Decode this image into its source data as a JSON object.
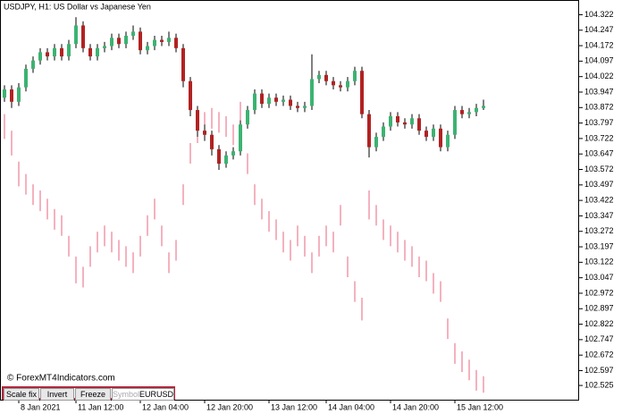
{
  "chart_data": {
    "type": "candlestick",
    "title": "USDJPY, H1:  US Dollar vs Japanese Yen",
    "watermark": "© ForexMT4Indicators.com",
    "categories": [
      null,
      null,
      "8 Jan 2021",
      null,
      null,
      null,
      null,
      null,
      null,
      null,
      "11 Jan 12:00",
      null,
      null,
      null,
      null,
      null,
      null,
      null,
      null,
      "12 Jan 04:00",
      null,
      null,
      null,
      null,
      null,
      null,
      null,
      null,
      "12 Jan 20:00",
      null,
      null,
      null,
      null,
      null,
      null,
      null,
      null,
      "13 Jan 12:00",
      null,
      null,
      null,
      null,
      null,
      null,
      null,
      "14 Jan 04:00",
      null,
      null,
      null,
      null,
      null,
      null,
      null,
      null,
      "14 Jan 20:00",
      null,
      null,
      null,
      null,
      null,
      null,
      null,
      null,
      "15 Jan 12:00",
      null,
      null,
      null,
      null
    ],
    "open": [
      103.92,
      103.96,
      103.9,
      103.97,
      104.06,
      104.1,
      104.14,
      104.12,
      104.16,
      104.12,
      104.18,
      104.27,
      104.16,
      104.12,
      104.16,
      104.17,
      104.21,
      104.18,
      104.22,
      104.24,
      104.15,
      104.17,
      104.2,
      104.19,
      104.21,
      104.16,
      104.0,
      103.86,
      103.76,
      103.74,
      103.67,
      103.6,
      103.64,
      103.66,
      103.79,
      103.86,
      103.94,
      103.89,
      103.92,
      103.9,
      103.91,
      103.88,
      103.87,
      103.88,
      104.01,
      104.03,
      104.0,
      103.98,
      103.97,
      104.0,
      104.05,
      103.84,
      103.68,
      103.73,
      103.78,
      103.83,
      103.8,
      103.79,
      103.82,
      103.76,
      103.73,
      103.77,
      103.68,
      103.74,
      103.86,
      103.84,
      103.85,
      103.87
    ],
    "high": [
      103.98,
      103.98,
      103.99,
      104.08,
      104.12,
      104.16,
      104.16,
      104.18,
      104.18,
      104.2,
      104.31,
      104.29,
      104.18,
      104.18,
      104.19,
      104.23,
      104.23,
      104.24,
      104.27,
      104.26,
      104.19,
      104.22,
      104.22,
      104.24,
      104.23,
      104.18,
      104.02,
      103.88,
      103.79,
      103.76,
      103.69,
      103.66,
      103.68,
      103.81,
      103.88,
      103.96,
      103.96,
      103.94,
      103.94,
      103.93,
      103.93,
      103.9,
      103.9,
      104.13,
      104.05,
      104.05,
      104.02,
      104.0,
      104.02,
      104.07,
      104.07,
      103.86,
      103.75,
      103.8,
      103.85,
      103.85,
      103.82,
      103.84,
      103.84,
      103.78,
      103.79,
      103.79,
      103.76,
      103.88,
      103.88,
      103.87,
      103.89,
      103.91
    ],
    "low": [
      103.9,
      103.87,
      103.88,
      103.95,
      104.04,
      104.08,
      104.1,
      104.1,
      104.1,
      104.1,
      104.16,
      104.14,
      104.1,
      104.1,
      104.14,
      104.15,
      104.16,
      104.16,
      104.2,
      104.13,
      104.13,
      104.15,
      104.17,
      104.17,
      104.14,
      103.97,
      103.83,
      103.73,
      103.71,
      103.64,
      103.57,
      103.58,
      103.62,
      103.64,
      103.77,
      103.84,
      103.87,
      103.87,
      103.88,
      103.88,
      103.86,
      103.85,
      103.85,
      103.86,
      103.99,
      103.98,
      103.96,
      103.95,
      103.95,
      103.98,
      103.82,
      103.63,
      103.66,
      103.71,
      103.76,
      103.78,
      103.77,
      103.77,
      103.74,
      103.71,
      103.71,
      103.66,
      103.66,
      103.72,
      103.82,
      103.82,
      103.83,
      103.86
    ],
    "close": [
      103.96,
      103.9,
      103.97,
      104.06,
      104.1,
      104.14,
      104.12,
      104.16,
      104.12,
      104.18,
      104.27,
      104.16,
      104.12,
      104.16,
      104.17,
      104.21,
      104.18,
      104.22,
      104.24,
      104.15,
      104.17,
      104.2,
      104.19,
      104.21,
      104.16,
      104.0,
      103.86,
      103.76,
      103.74,
      103.67,
      103.6,
      103.64,
      103.66,
      103.79,
      103.86,
      103.94,
      103.89,
      103.92,
      103.9,
      103.91,
      103.88,
      103.87,
      103.88,
      104.01,
      104.03,
      104.0,
      103.98,
      103.97,
      104.0,
      104.05,
      103.84,
      103.68,
      103.73,
      103.78,
      103.83,
      103.8,
      103.79,
      103.82,
      103.76,
      103.73,
      103.77,
      103.68,
      103.74,
      103.86,
      103.84,
      103.85,
      103.87,
      103.88
    ],
    "up_color": "#3cb371",
    "down_color": "#b22222",
    "wick_color": "#000000",
    "overlay": {
      "name": "EURUSD",
      "type": "bar",
      "color": "#e8667f",
      "high": [
        103.84,
        103.76,
        103.61,
        103.55,
        103.5,
        103.47,
        103.43,
        103.38,
        103.35,
        103.25,
        103.15,
        103.1,
        103.2,
        103.27,
        103.3,
        103.27,
        103.23,
        103.2,
        103.17,
        103.25,
        103.35,
        103.43,
        103.3,
        103.17,
        103.23,
        103.5,
        103.7,
        103.8,
        103.85,
        103.87,
        103.85,
        103.83,
        103.79,
        103.9,
        103.65,
        103.5,
        103.43,
        103.37,
        103.33,
        103.27,
        103.23,
        103.3,
        103.25,
        103.17,
        103.25,
        103.3,
        103.27,
        103.4,
        103.15,
        103.03,
        102.95,
        103.47,
        103.4,
        103.33,
        103.3,
        103.27,
        103.23,
        103.2,
        103.15,
        103.13,
        103.07,
        103.03,
        102.85,
        102.73,
        102.69,
        102.65,
        102.6,
        102.57
      ],
      "low": [
        103.72,
        103.64,
        103.49,
        103.45,
        103.4,
        103.37,
        103.33,
        103.28,
        103.25,
        103.15,
        103.02,
        103.0,
        103.1,
        103.17,
        103.2,
        103.17,
        103.13,
        103.1,
        103.07,
        103.15,
        103.25,
        103.33,
        103.2,
        103.07,
        103.13,
        103.4,
        103.6,
        103.7,
        103.75,
        103.77,
        103.75,
        103.73,
        103.69,
        103.8,
        103.55,
        103.4,
        103.33,
        103.27,
        103.23,
        103.17,
        103.13,
        103.2,
        103.15,
        103.07,
        103.15,
        103.2,
        103.17,
        103.3,
        103.05,
        102.93,
        102.84,
        103.33,
        103.3,
        103.23,
        103.2,
        103.17,
        103.13,
        103.1,
        103.05,
        103.03,
        102.97,
        102.93,
        102.75,
        102.63,
        102.59,
        102.55,
        102.5,
        102.49
      ]
    },
    "ylim": [
      102.456,
      104.376
    ],
    "yticks": [
      102.525,
      102.597,
      102.672,
      102.747,
      102.822,
      102.897,
      102.972,
      103.047,
      103.122,
      103.197,
      103.272,
      103.347,
      103.422,
      103.497,
      103.572,
      103.647,
      103.722,
      103.797,
      103.872,
      103.947,
      104.022,
      104.097,
      104.172,
      104.247,
      104.322
    ]
  },
  "controls": {
    "buttons": [
      "Scale fix",
      "Invert",
      "Freeze"
    ],
    "symbol_placeholder": "Symbol"
  }
}
